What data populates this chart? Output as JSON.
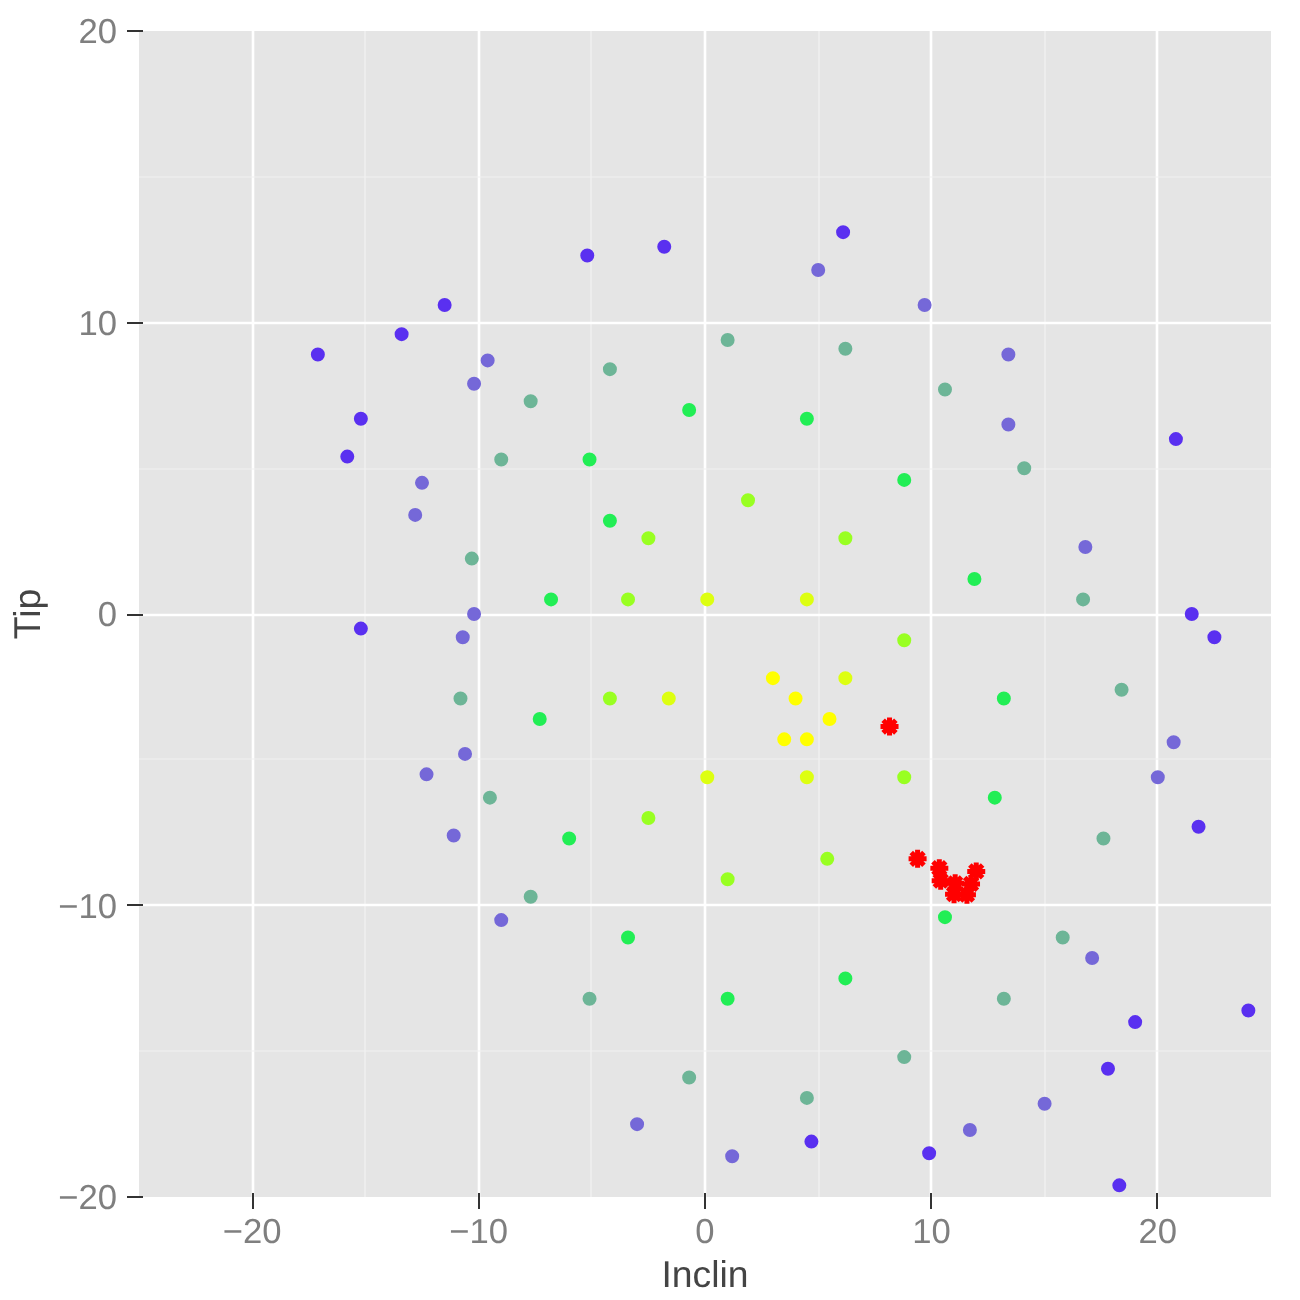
{
  "chart_data": {
    "type": "scatter",
    "xlabel": "Inclin",
    "ylabel": "Tip",
    "xlim": [
      -25,
      25
    ],
    "ylim": [
      -20,
      20
    ],
    "xticks": [
      -20,
      -10,
      0,
      10,
      20
    ],
    "yticks": [
      -20,
      -10,
      0,
      10,
      20
    ],
    "grid": true,
    "marker": "circle",
    "series": [
      {
        "color": "#5a30f0",
        "x": [
          -17.1,
          -15.2,
          -15.8,
          -13.4,
          -11.5,
          -5.2,
          -1.8,
          6.1,
          24.0,
          18.3,
          9.9,
          21.8,
          22.5,
          20.8,
          21.5,
          19.0,
          17.8,
          4.7,
          -15.2
        ],
        "values": [
          8.9,
          6.7,
          5.4,
          9.6,
          10.6,
          12.3,
          12.6,
          13.1,
          -13.6,
          -19.6,
          -18.5,
          -7.3,
          -0.8,
          6.0,
          0.0,
          -14.0,
          -15.6,
          -18.1,
          -0.5
        ]
      },
      {
        "color": "#7568d8",
        "x": [
          9.7,
          5.0,
          20.7,
          20.0,
          11.7,
          1.2,
          -3.0,
          -9.0,
          -11.1,
          -12.3,
          -10.6,
          -12.8,
          -12.5,
          -10.2,
          -9.6,
          13.4,
          13.4,
          16.8,
          15.0,
          17.1,
          -10.7,
          -10.2
        ],
        "values": [
          10.6,
          11.8,
          -4.4,
          -5.6,
          -17.7,
          -18.6,
          -17.5,
          -10.5,
          -7.6,
          -5.5,
          -4.8,
          3.4,
          4.5,
          7.9,
          8.7,
          8.9,
          6.5,
          2.3,
          -16.8,
          -11.8,
          -0.8,
          0.0
        ]
      },
      {
        "color": "#6db597",
        "x": [
          -7.7,
          -4.2,
          1.0,
          6.2,
          10.6,
          14.1,
          16.7,
          18.4,
          17.6,
          15.8,
          13.2,
          8.8,
          4.5,
          -0.7,
          -5.1,
          -7.7,
          -9.5,
          -10.8,
          -10.3,
          -9.0
        ],
        "values": [
          7.3,
          8.4,
          9.4,
          9.1,
          7.7,
          5.0,
          0.5,
          -2.6,
          -7.7,
          -11.1,
          -13.2,
          -15.2,
          -16.6,
          -15.9,
          -13.2,
          -9.7,
          -6.3,
          -2.9,
          1.9,
          5.3
        ]
      },
      {
        "color": "#22ee55",
        "x": [
          -5.1,
          -0.7,
          4.5,
          8.8,
          11.9,
          13.2,
          12.8,
          10.6,
          6.2,
          1.0,
          -3.4,
          -6.0,
          -7.3,
          -6.8,
          -4.2
        ],
        "values": [
          5.3,
          7.0,
          6.7,
          4.6,
          1.2,
          -2.9,
          -6.3,
          -10.4,
          -12.5,
          -13.2,
          -11.1,
          -7.7,
          -3.6,
          0.5,
          3.2
        ]
      },
      {
        "color": "#99ff22",
        "x": [
          -2.5,
          1.9,
          6.2,
          8.8,
          8.8,
          5.4,
          1.0,
          -2.5,
          -4.2,
          -3.4
        ],
        "values": [
          2.6,
          3.9,
          2.6,
          -0.9,
          -5.6,
          -8.4,
          -9.1,
          -7.0,
          -2.9,
          0.5
        ]
      },
      {
        "color": "#ddff11",
        "x": [
          0.1,
          4.5,
          6.2,
          4.5,
          0.1,
          -1.6
        ],
        "values": [
          0.5,
          0.5,
          -2.2,
          -5.6,
          -5.6,
          -2.9
        ]
      },
      {
        "color": "#ffff00",
        "x": [
          4.0,
          3.5,
          4.5,
          3.0,
          5.5
        ],
        "values": [
          -2.9,
          -4.3,
          -4.3,
          -2.2,
          -3.6
        ]
      },
      {
        "color": "#ff0000",
        "marker": "cross",
        "x": [
          8.15,
          9.39,
          10.35,
          10.41,
          11.05,
          11.0,
          11.57,
          11.75,
          11.98
        ],
        "values": [
          -3.86,
          -8.4,
          -8.72,
          -9.15,
          -9.24,
          -9.61,
          -9.63,
          -9.26,
          -8.83
        ]
      }
    ]
  }
}
